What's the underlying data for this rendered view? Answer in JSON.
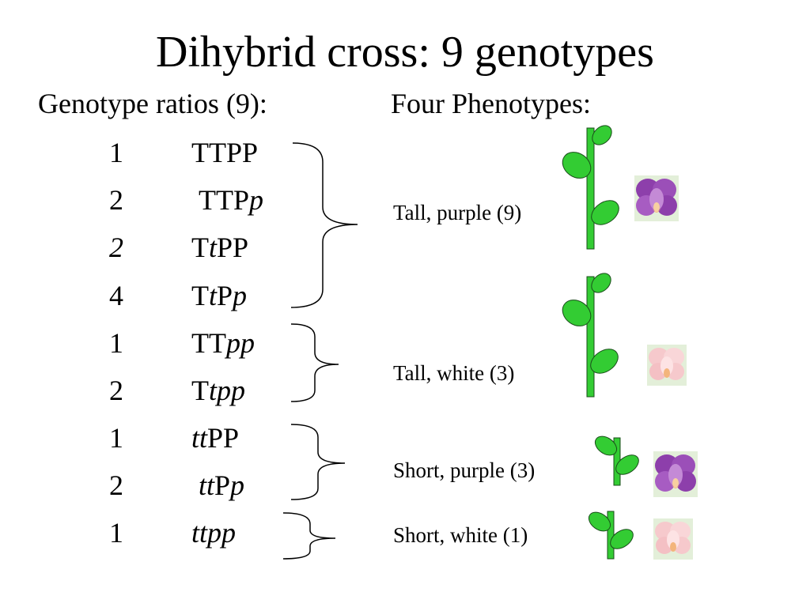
{
  "slide": {
    "title": "Dihybrid cross: 9 genotypes",
    "genotype_heading": "Genotype ratios (9):",
    "phenotype_heading": "Four Phenotypes:"
  },
  "genotypes": [
    {
      "count": "1",
      "count_italic": false,
      "parts": [
        {
          "t": "TTPP",
          "i": false
        }
      ]
    },
    {
      "count": "2",
      "count_italic": false,
      "parts": [
        {
          "t": " TTP",
          "i": false
        },
        {
          "t": "p",
          "i": true
        }
      ]
    },
    {
      "count": "2",
      "count_italic": true,
      "parts": [
        {
          "t": "T",
          "i": false
        },
        {
          "t": "t",
          "i": true
        },
        {
          "t": "PP",
          "i": false
        }
      ]
    },
    {
      "count": "4",
      "count_italic": false,
      "parts": [
        {
          "t": "T",
          "i": false
        },
        {
          "t": "t",
          "i": true
        },
        {
          "t": "P",
          "i": false
        },
        {
          "t": "p",
          "i": true
        }
      ]
    },
    {
      "count": "1",
      "count_italic": false,
      "parts": [
        {
          "t": "TT",
          "i": false
        },
        {
          "t": "pp",
          "i": true
        }
      ]
    },
    {
      "count": "2",
      "count_italic": false,
      "parts": [
        {
          "t": "T",
          "i": false
        },
        {
          "t": "tpp",
          "i": true
        }
      ]
    },
    {
      "count": "1",
      "count_italic": false,
      "parts": [
        {
          "t": "tt",
          "i": true
        },
        {
          "t": "PP",
          "i": false
        }
      ]
    },
    {
      "count": "2",
      "count_italic": false,
      "parts": [
        {
          "t": " ",
          "i": false
        },
        {
          "t": "tt",
          "i": true
        },
        {
          "t": "P",
          "i": false
        },
        {
          "t": "p",
          "i": true
        }
      ]
    },
    {
      "count": "1",
      "count_italic": false,
      "parts": [
        {
          "t": "ttpp",
          "i": true
        }
      ]
    }
  ],
  "phenotypes": [
    {
      "label": "Tall, purple (9)",
      "plant": "tall",
      "flower": "purple"
    },
    {
      "label": "Tall, white (3)",
      "plant": "tall",
      "flower": "white"
    },
    {
      "label": "Short, purple (3)",
      "plant": "short",
      "flower": "purple"
    },
    {
      "label": "Short, white (1)",
      "plant": "short",
      "flower": "white"
    }
  ],
  "colors": {
    "stem": "#33cc33",
    "leaf": "#33cc33",
    "outline": "#1a4d1a",
    "purple_flower": "#9b4fb8",
    "white_flower": "#f6c9cc",
    "flower_bg": "#e3efd9"
  }
}
